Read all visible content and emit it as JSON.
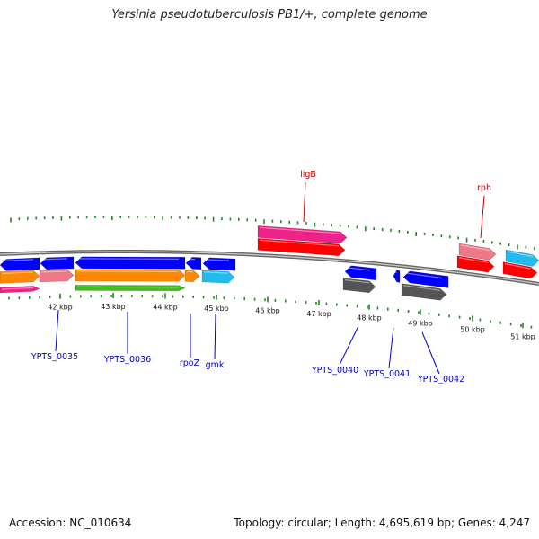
{
  "title": "Yersinia pseudotuberculosis PB1/+, complete genome",
  "footer": {
    "accession": "Accession: NC_010634",
    "topology": "Topology: circular; Length: 4,695,619 bp; Genes: 4,247"
  },
  "colors": {
    "backbone": "#888888",
    "ticks": "#228822",
    "label_blue": "#0000cc",
    "label_red": "#cc0000",
    "blue": "#0000ff",
    "magenta": "#ee2288",
    "red": "#ff0000",
    "pink": "#ee7788",
    "cyan": "#22bbee",
    "orange": "#ff8800",
    "green": "#44bb22",
    "gray": "#555555"
  },
  "tick_labels": [
    "42 kbp",
    "43 kbp",
    "44 kbp",
    "45 kbp",
    "46 kbp",
    "47 kbp",
    "48 kbp",
    "49 kbp",
    "50 kbp",
    "51 kbp"
  ],
  "gene_labels": [
    {
      "text": "ligB",
      "color": "red"
    },
    {
      "text": "rph",
      "color": "red"
    },
    {
      "text": "YPTS_0035",
      "color": "blue"
    },
    {
      "text": "YPTS_0036",
      "color": "blue"
    },
    {
      "text": "rpoZ",
      "color": "blue"
    },
    {
      "text": "gmk",
      "color": "blue"
    },
    {
      "text": "YPTS_0040",
      "color": "blue"
    },
    {
      "text": "YPTS_0041",
      "color": "blue"
    },
    {
      "text": "YPTS_0042",
      "color": "blue"
    }
  ]
}
